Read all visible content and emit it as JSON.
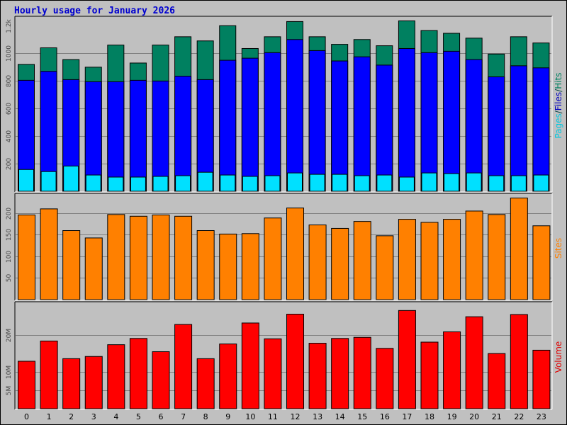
{
  "chart_data": {
    "type": "bar",
    "title": "Hourly usage for January 2026",
    "categories": [
      "0",
      "1",
      "2",
      "3",
      "4",
      "5",
      "6",
      "7",
      "8",
      "9",
      "10",
      "11",
      "12",
      "13",
      "14",
      "15",
      "16",
      "17",
      "18",
      "19",
      "20",
      "21",
      "22",
      "23"
    ],
    "panels": [
      {
        "name": "requests",
        "ylim": [
          0,
          1250
        ],
        "yticks": [
          200,
          400,
          600,
          800,
          1000
        ],
        "ytick_labels": [
          "200",
          "400",
          "600",
          "800",
          "1000"
        ],
        "ytop_label": "1.2k",
        "ylabel_parts": [
          {
            "text": "Pages",
            "color": "#00c8e0"
          },
          {
            "text": "/",
            "color": "#004040"
          },
          {
            "text": "Files",
            "color": "#0000c0"
          },
          {
            "text": "/",
            "color": "#004040"
          },
          {
            "text": "Hits",
            "color": "#008060"
          }
        ],
        "series": [
          {
            "name": "Hits",
            "color": "#008060",
            "values": [
              920,
              1040,
              955,
              900,
              1060,
              930,
              1060,
              1120,
              1090,
              1200,
              1035,
              1120,
              1230,
              1120,
              1065,
              1100,
              1055,
              1235,
              1165,
              1145,
              1110,
              995,
              1120,
              1075
            ]
          },
          {
            "name": "Files",
            "color": "#0000ff",
            "values": [
              805,
              870,
              810,
              795,
              795,
              805,
              800,
              835,
              810,
              950,
              965,
              1005,
              1100,
              1020,
              945,
              975,
              915,
              1035,
              1005,
              1015,
              955,
              830,
              910,
              895
            ]
          },
          {
            "name": "Pages",
            "color": "#00e0ff",
            "values": [
              160,
              145,
              185,
              120,
              105,
              105,
              110,
              115,
              140,
              120,
              110,
              115,
              135,
              125,
              125,
              115,
              120,
              105,
              135,
              130,
              135,
              115,
              115,
              120
            ]
          }
        ]
      },
      {
        "name": "sites",
        "ylim": [
          0,
          240
        ],
        "yticks": [
          50,
          100,
          150,
          200
        ],
        "ytick_labels": [
          "50",
          "100",
          "150",
          "200"
        ],
        "ylabel_parts": [
          {
            "text": "Sites",
            "color": "#ff8000"
          }
        ],
        "series": [
          {
            "name": "Sites",
            "color": "#ff8000",
            "values": [
              196,
              210,
              160,
              143,
              197,
              193,
              196,
              193,
              160,
              152,
              153,
              189,
              212,
              173,
              165,
              181,
              148,
              186,
              179,
              186,
              205,
              197,
              235,
              171
            ]
          }
        ]
      },
      {
        "name": "volume",
        "ylim": [
          0,
          28.5
        ],
        "yticks": [
          5,
          10,
          20
        ],
        "ytick_labels": [
          "5M",
          "10M",
          "20M"
        ],
        "ylabel_parts": [
          {
            "text": "Volume",
            "color": "#e00000"
          }
        ],
        "series": [
          {
            "name": "Volume",
            "color": "#ff0000",
            "values": [
              13,
              18.5,
              13.7,
              14.3,
              17.5,
              19.2,
              15.6,
              23,
              13.7,
              17.7,
              23.4,
              19.1,
              25.8,
              17.9,
              19.2,
              19.5,
              16.5,
              26.8,
              18.2,
              21,
              25.1,
              15.1,
              25.7,
              16
            ]
          }
        ]
      }
    ]
  }
}
